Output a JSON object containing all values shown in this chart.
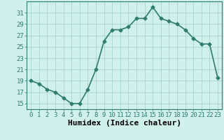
{
  "x": [
    0,
    1,
    2,
    3,
    4,
    5,
    6,
    7,
    8,
    9,
    10,
    11,
    12,
    13,
    14,
    15,
    16,
    17,
    18,
    19,
    20,
    21,
    22,
    23
  ],
  "y": [
    19.0,
    18.5,
    17.5,
    17.0,
    16.0,
    15.0,
    15.0,
    17.5,
    21.0,
    26.0,
    28.0,
    28.0,
    28.5,
    30.0,
    30.0,
    32.0,
    30.0,
    29.5,
    29.0,
    28.0,
    26.5,
    25.5,
    25.5,
    19.5
  ],
  "line_color": "#2e7d6e",
  "marker": "D",
  "marker_size": 2.5,
  "bg_color": "#cff0eb",
  "grid_color": "#aad4ce",
  "xlabel": "Humidex (Indice chaleur)",
  "xlim": [
    -0.5,
    23.5
  ],
  "ylim": [
    14,
    33
  ],
  "yticks": [
    15,
    17,
    19,
    21,
    23,
    25,
    27,
    29,
    31
  ],
  "xticks": [
    0,
    1,
    2,
    3,
    4,
    5,
    6,
    7,
    8,
    9,
    10,
    11,
    12,
    13,
    14,
    15,
    16,
    17,
    18,
    19,
    20,
    21,
    22,
    23
  ],
  "tick_fontsize": 6.5,
  "xlabel_fontsize": 8,
  "linewidth": 1.2
}
